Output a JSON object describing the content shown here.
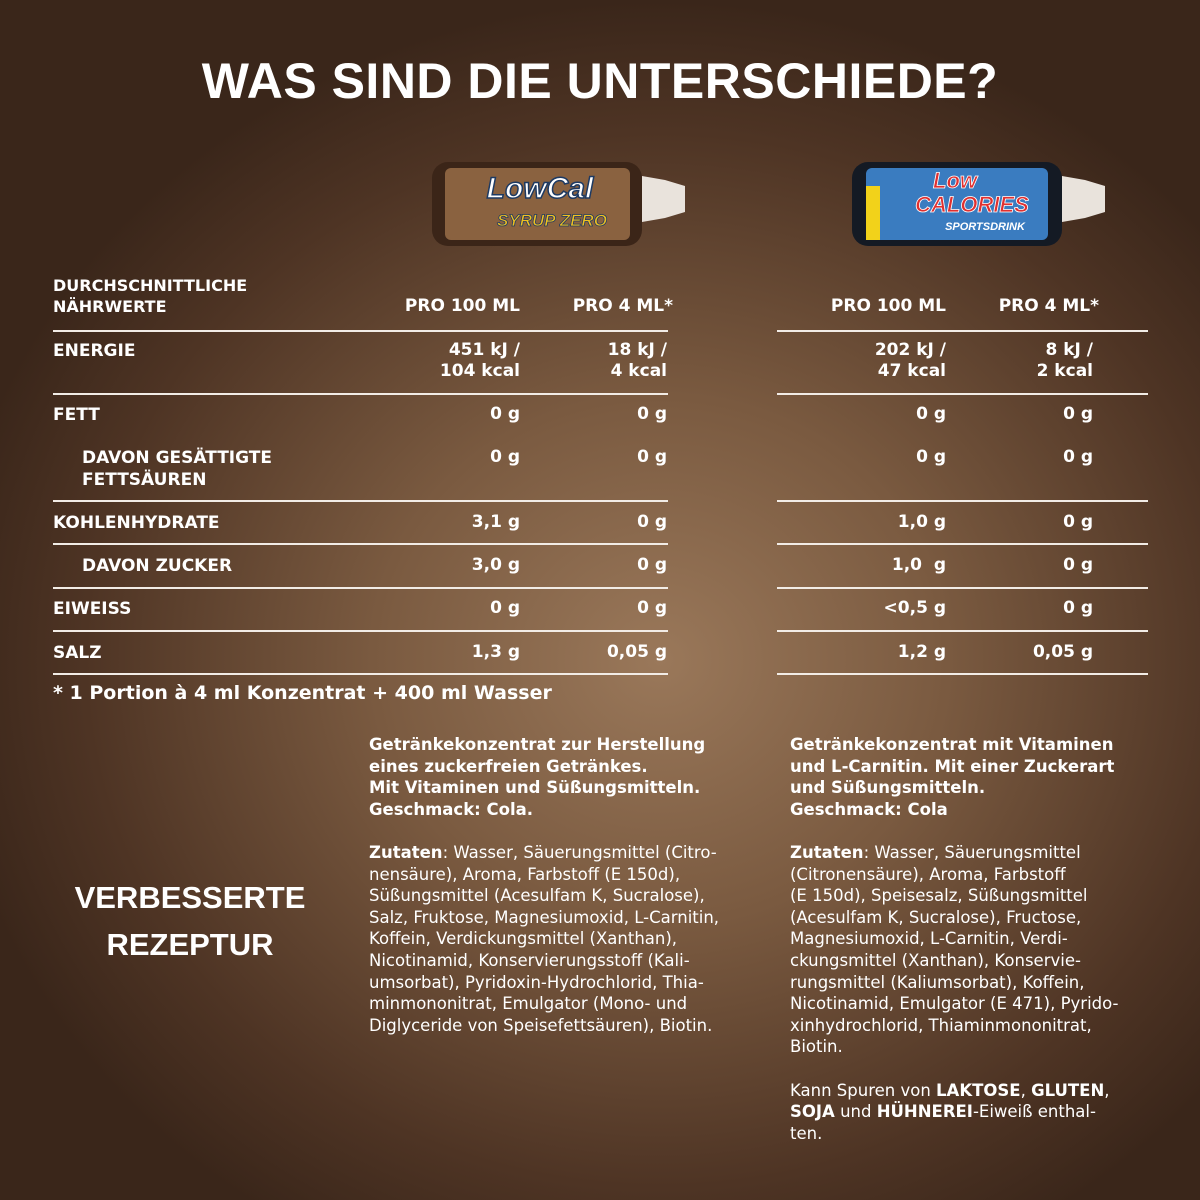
{
  "header": {
    "title": "WAS SIND DIE UNTERSCHIEDE?"
  },
  "products": [
    {
      "name": "LowCal",
      "sub": "SYRUP ZERO"
    },
    {
      "name": "Low",
      "name2": "CALORIES",
      "sub": "SPORTSDRINK"
    }
  ],
  "table": {
    "label": "DURCHSCHNITTLICHE\nNÄHRWERTE",
    "columns": [
      "PRO 100 ML",
      "PRO 4 ML*",
      "PRO 100 ML",
      "PRO 4 ML*"
    ],
    "rows": [
      {
        "name": "ENERGIE",
        "indent": false,
        "values": [
          "451 kJ /\n104 kcal",
          "18 kJ /\n4 kcal",
          "202 kJ /\n47 kcal",
          "8 kJ /\n2 kcal"
        ]
      },
      {
        "name": "FETT",
        "indent": false,
        "values": [
          "0 g",
          "0 g",
          "0 g",
          "0 g"
        ]
      },
      {
        "name": "DAVON GESÄTTIGTE\nFETTSÄUREN",
        "indent": true,
        "values": [
          "0 g",
          "0 g",
          "0 g",
          "0 g"
        ]
      },
      {
        "name": "KOHLENHYDRATE",
        "indent": false,
        "values": [
          "3,1 g",
          "0 g",
          "1,0 g",
          "0 g"
        ]
      },
      {
        "name": "DAVON ZUCKER",
        "indent": true,
        "values": [
          "3,0 g",
          "0 g",
          "1,0  g",
          "0 g"
        ]
      },
      {
        "name": "EIWEISS",
        "indent": false,
        "values": [
          "0 g",
          "0 g",
          "<0,5 g",
          "0 g"
        ]
      },
      {
        "name": "SALZ",
        "indent": false,
        "values": [
          "1,3 g",
          "0,05 g",
          "1,2 g",
          "0,05 g"
        ]
      }
    ],
    "footnote": "* 1 Portion à 4 ml Konzentrat + 400 ml Wasser"
  },
  "side_heading": "VERBESSERTE\nREZEPTUR",
  "descriptions": [
    {
      "runs": [
        {
          "text": "Getränkekonzentrat zur Herstellung\neines zuckerfreien Getränkes.\nMit Vitaminen und Süßungsmitteln.\nGeschmack: Cola.\n\nZutaten",
          "bold": true
        },
        {
          "text": ": Wasser, Säuerungsmittel (Citro-\nnensäure), Aroma, Farbstoff (E 150d),\nSüßungsmittel (Acesulfam K, Sucralose),\nSalz, Fruktose, Magnesiumoxid, L-Carnitin,\nKoffein, Verdickungsmittel (Xanthan),\nNicotinamid, Konservierungsstoff (Kali-\numsorbat), Pyridoxin-Hydrochlorid, Thia-\nminmononitrat, Emulgator (Mono- und\nDiglyceride von Speisefettsäuren), Biotin.",
          "bold": false
        }
      ]
    },
    {
      "runs": [
        {
          "text": "Getränkekonzentrat mit Vitaminen\nund L-Carnitin. Mit einer Zuckerart\nund Süßungsmitteln.\nGeschmack: Cola\n\nZutaten",
          "bold": true
        },
        {
          "text": ": Wasser, Säuerungsmittel\n(Citronensäure), Aroma, Farbstoff\n(E 150d), Speisesalz, Süßungsmittel\n(Acesulfam K, Sucralose), Fructose,\nMagnesiumoxid, L-Carnitin, Verdi-\nckungsmittel (Xanthan), Konservie-\nrungsmittel (Kaliumsorbat), Koffein,\nNicotinamid, Emulgator (E 471), Pyrido-\nxinhydrochlorid, Thiaminmononitrat,\nBiotin.\n\nKann Spuren von ",
          "bold": false
        },
        {
          "text": "LAKTOSE",
          "bold": true
        },
        {
          "text": ", ",
          "bold": false
        },
        {
          "text": "GLUTEN",
          "bold": true
        },
        {
          "text": ",\n",
          "bold": false
        },
        {
          "text": "SOJA",
          "bold": true
        },
        {
          "text": " und ",
          "bold": false
        },
        {
          "text": "HÜHNEREI",
          "bold": true
        },
        {
          "text": "-Eiweiß enthal-\nten.",
          "bold": false
        }
      ]
    }
  ]
}
